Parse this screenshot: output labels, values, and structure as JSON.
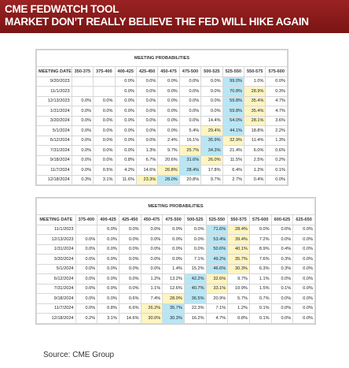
{
  "header": {
    "line1": "CME FEDWATCH TOOL",
    "line2": "MARKET DON’T REALLY BELIEVE THE FED WILL HIKE AGAIN"
  },
  "tables": [
    {
      "title": "MEETING PROBABILITIES",
      "columns": [
        "MEETING DATE",
        "350-375",
        "375-400",
        "400-425",
        "425-450",
        "450-475",
        "475-500",
        "500-525",
        "525-550",
        "550-575",
        "575-600"
      ],
      "rows": [
        {
          "date": "9/20/2023",
          "cells": [
            null,
            null,
            "0.0%",
            "0.0%",
            "0.0%",
            "0.0%",
            "0.0%",
            "99.0%",
            "1.0%",
            "0.0%"
          ]
        },
        {
          "date": "11/1/2023",
          "cells": [
            null,
            null,
            "0.0%",
            "0.0%",
            "0.0%",
            "0.0%",
            "0.0%",
            "70.8%",
            "28.9%",
            "0.3%"
          ]
        },
        {
          "date": "12/13/2023",
          "cells": [
            "0.0%",
            "0.0%",
            "0.0%",
            "0.0%",
            "0.0%",
            "0.0%",
            "0.0%",
            "59.8%",
            "35.4%",
            "4.7%"
          ]
        },
        {
          "date": "1/31/2024",
          "cells": [
            "0.0%",
            "0.0%",
            "0.0%",
            "0.0%",
            "0.0%",
            "0.0%",
            "0.0%",
            "59.8%",
            "35.4%",
            "4.7%"
          ]
        },
        {
          "date": "3/20/2024",
          "cells": [
            "0.0%",
            "0.0%",
            "0.0%",
            "0.0%",
            "0.0%",
            "0.0%",
            "14.4%",
            "54.0%",
            "28.1%",
            "3.6%"
          ]
        },
        {
          "date": "5/1/2024",
          "cells": [
            "0.0%",
            "0.0%",
            "0.0%",
            "0.0%",
            "0.0%",
            "5.4%",
            "29.4%",
            "44.1%",
            "18.8%",
            "2.2%"
          ]
        },
        {
          "date": "6/12/2024",
          "cells": [
            "0.0%",
            "0.0%",
            "0.0%",
            "0.0%",
            "2.4%",
            "16.1%",
            "35.9%",
            "32.9%",
            "11.4%",
            "1.3%"
          ]
        },
        {
          "date": "7/31/2024",
          "cells": [
            "0.0%",
            "0.0%",
            "0.0%",
            "1.3%",
            "9.7%",
            "25.7%",
            "34.3%",
            "21.4%",
            "6.0%",
            "0.6%"
          ]
        },
        {
          "date": "9/18/2024",
          "cells": [
            "0.0%",
            "0.0%",
            "0.8%",
            "6.7%",
            "20.6%",
            "31.6%",
            "26.0%",
            "11.5%",
            "2.5%",
            "0.2%"
          ]
        },
        {
          "date": "11/7/2024",
          "cells": [
            "0.0%",
            "0.5%",
            "4.2%",
            "14.6%",
            "26.8%",
            "28.4%",
            "17.8%",
            "6.4%",
            "1.2%",
            "0.1%"
          ]
        },
        {
          "date": "12/18/2024",
          "cells": [
            "0.3%",
            "3.1%",
            "11.6%",
            "23.3%",
            "28.0%",
            "20.8%",
            "9.7%",
            "2.7%",
            "0.4%",
            "0.0%"
          ]
        }
      ]
    },
    {
      "title": "MEETING PROBABILITIES",
      "columns": [
        "MEETING DATE",
        "375-400",
        "400-425",
        "425-450",
        "450-475",
        "475-500",
        "500-525",
        "525-550",
        "550-575",
        "575-600",
        "600-625",
        "625-650"
      ],
      "rows": [
        {
          "date": "11/1/2023",
          "cells": [
            null,
            "0.0%",
            "0.0%",
            "0.0%",
            "0.0%",
            "0.0%",
            "71.6%",
            "28.4%",
            "0.0%",
            "0.0%",
            "0.0%"
          ]
        },
        {
          "date": "12/13/2023",
          "cells": [
            "0.0%",
            "0.0%",
            "0.0%",
            "0.0%",
            "0.0%",
            "0.0%",
            "53.4%",
            "39.4%",
            "7.2%",
            "0.0%",
            "0.0%"
          ]
        },
        {
          "date": "1/31/2024",
          "cells": [
            "0.0%",
            "0.0%",
            "0.0%",
            "0.0%",
            "0.0%",
            "0.0%",
            "50.6%",
            "40.1%",
            "8.9%",
            "0.4%",
            "0.0%"
          ]
        },
        {
          "date": "3/20/2024",
          "cells": [
            "0.0%",
            "0.0%",
            "0.0%",
            "0.0%",
            "0.0%",
            "7.1%",
            "49.2%",
            "35.7%",
            "7.6%",
            "0.3%",
            "0.0%"
          ]
        },
        {
          "date": "5/1/2024",
          "cells": [
            "0.0%",
            "0.0%",
            "0.0%",
            "0.0%",
            "1.4%",
            "15.2%",
            "46.6%",
            "30.3%",
            "6.3%",
            "0.3%",
            "0.0%"
          ]
        },
        {
          "date": "6/12/2024",
          "cells": [
            "0.0%",
            "0.0%",
            "0.0%",
            "1.2%",
            "13.2%",
            "42.2%",
            "32.6%",
            "9.7%",
            "1.1%",
            "0.0%",
            "0.0%"
          ]
        },
        {
          "date": "7/31/2024",
          "cells": [
            "0.0%",
            "0.0%",
            "0.0%",
            "1.1%",
            "12.6%",
            "40.7%",
            "33.1%",
            "10.9%",
            "1.5%",
            "0.1%",
            "0.0%"
          ]
        },
        {
          "date": "9/18/2024",
          "cells": [
            "0.0%",
            "0.0%",
            "0.6%",
            "7.4%",
            "28.0%",
            "36.5%",
            "20.9%",
            "5.7%",
            "0.7%",
            "0.0%",
            "0.0%"
          ]
        },
        {
          "date": "11/7/2024",
          "cells": [
            "0.0%",
            "0.8%",
            "6.6%",
            "26.2%",
            "35.7%",
            "22.3%",
            "7.1%",
            "1.2%",
            "0.1%",
            "0.0%",
            "0.0%"
          ]
        },
        {
          "date": "12/18/2024",
          "cells": [
            "0.2%",
            "3.1%",
            "14.6%",
            "30.0%",
            "30.3%",
            "16.2%",
            "4.7%",
            "0.8%",
            "0.1%",
            "0.0%",
            "0.0%"
          ]
        }
      ]
    }
  ],
  "source": "Source:  CME Group"
}
